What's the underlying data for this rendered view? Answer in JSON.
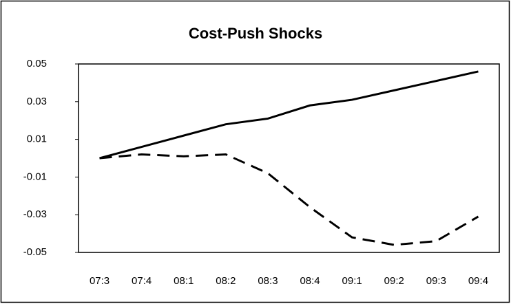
{
  "chart_data": {
    "type": "line",
    "title": "Cost-Push Shocks",
    "categories": [
      "07:3",
      "07:4",
      "08:1",
      "08:2",
      "08:3",
      "08:4",
      "09:1",
      "09:2",
      "09:3",
      "09:4"
    ],
    "series": [
      {
        "color": "#000000",
        "dash": "solid",
        "values": [
          0.0,
          0.006,
          0.012,
          0.018,
          0.021,
          0.028,
          0.031,
          0.036,
          0.041,
          0.046
        ]
      },
      {
        "color": "#000000",
        "dash": "dashed",
        "values": [
          0.0,
          0.002,
          0.001,
          0.002,
          -0.008,
          -0.026,
          -0.042,
          -0.046,
          -0.044,
          -0.031
        ]
      }
    ],
    "ylim": [
      -0.05,
      0.05
    ],
    "yticks": [
      -0.05,
      -0.03,
      -0.01,
      0.01,
      0.03,
      0.05
    ],
    "grid": false
  }
}
